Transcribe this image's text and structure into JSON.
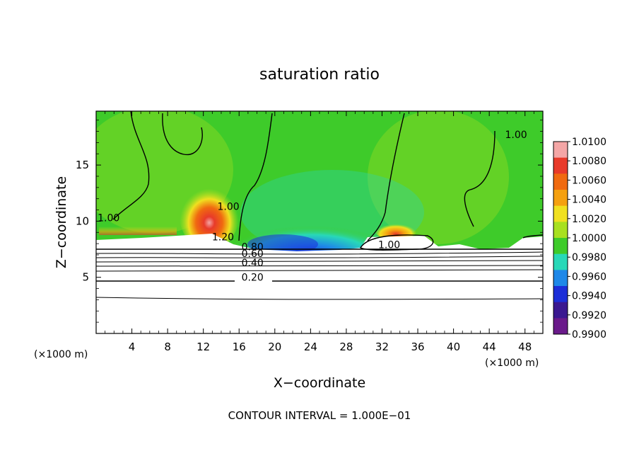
{
  "chart_data": {
    "type": "heatmap",
    "title": "saturation ratio",
    "xlabel": "X−coordinate",
    "ylabel": "Z−coordinate",
    "x_unit_label": "(×1000 m)",
    "z_unit_label": "(×1000 m)",
    "footer": "CONTOUR INTERVAL = 1.000E−01",
    "xlim": [
      0,
      50
    ],
    "ylim": [
      0,
      19.8
    ],
    "x_ticks": [
      4,
      8,
      12,
      16,
      20,
      24,
      28,
      32,
      36,
      40,
      44,
      48
    ],
    "x_tick_labels": [
      "4",
      "8",
      "12",
      "16",
      "20",
      "24",
      "28",
      "32",
      "36",
      "40",
      "44",
      "48"
    ],
    "y_ticks": [
      5,
      10,
      15
    ],
    "y_tick_labels": [
      "5",
      "10",
      "15"
    ],
    "colorbar": {
      "levels": [
        "1.0100",
        "1.0080",
        "1.0060",
        "1.0040",
        "1.0020",
        "1.0000",
        "0.9980",
        "0.9960",
        "0.9940",
        "0.9920",
        "0.9900"
      ],
      "colors": [
        "#f4a6a6",
        "#e83a2a",
        "#f06a10",
        "#f5a010",
        "#f0e020",
        "#a8e020",
        "#3ecb2a",
        "#28d8b8",
        "#1e88e8",
        "#1c2ed8",
        "#3a1890",
        "#6a1a8a"
      ]
    },
    "contour_labels": [
      {
        "text": "1.00",
        "x": 1.4,
        "y": 10.0
      },
      {
        "text": "1.00",
        "x": 14.8,
        "y": 11.0
      },
      {
        "text": "1.00",
        "x": 47.0,
        "y": 17.4
      },
      {
        "text": "1.20",
        "x": 14.2,
        "y": 8.3
      },
      {
        "text": "1.00",
        "x": 32.8,
        "y": 7.6
      },
      {
        "text": "0.80",
        "x": 17.5,
        "y": 7.4
      },
      {
        "text": "0.60",
        "x": 17.5,
        "y": 6.8
      },
      {
        "text": "0.40",
        "x": 17.5,
        "y": 6.0
      },
      {
        "text": "0.20",
        "x": 17.5,
        "y": 4.7
      }
    ]
  }
}
